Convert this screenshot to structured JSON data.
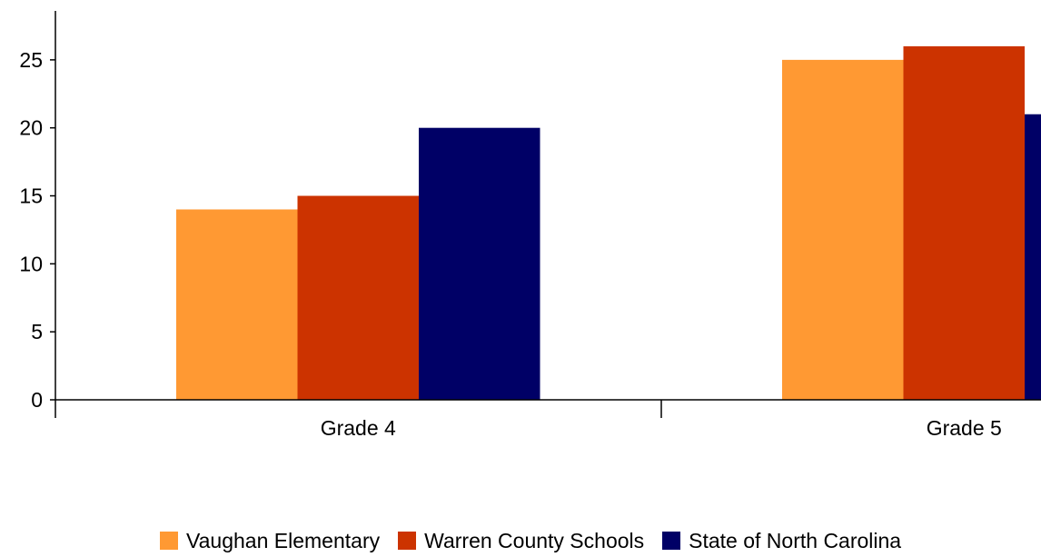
{
  "chart_data": {
    "type": "bar",
    "categories": [
      "Grade 4",
      "Grade 5"
    ],
    "series": [
      {
        "name": "Vaughan Elementary",
        "color": "#FF9933",
        "values": [
          14,
          25
        ]
      },
      {
        "name": "Warren County Schools",
        "color": "#CC3300",
        "values": [
          15,
          26
        ]
      },
      {
        "name": "State of North Carolina",
        "color": "#000066",
        "values": [
          20,
          21
        ]
      }
    ],
    "yticks": [
      "0",
      "5",
      "10",
      "15",
      "20",
      "25"
    ],
    "ylim": [
      0,
      28.6
    ],
    "grid": false,
    "legend": "bottom"
  }
}
